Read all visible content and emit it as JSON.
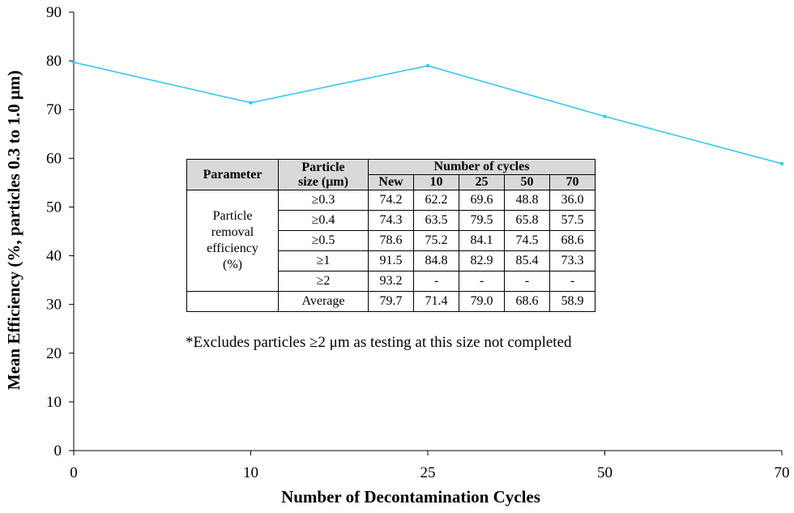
{
  "chart_data": {
    "type": "line",
    "xlabel": "Number of Decontamination Cycles",
    "ylabel": "Mean Efficiency (%, particles 0.3 to 1.0 μm)",
    "categories": [
      "0",
      "10",
      "25",
      "50",
      "70"
    ],
    "values": [
      79.7,
      71.4,
      79.0,
      68.6,
      58.9
    ],
    "ylim": [
      0,
      90
    ],
    "yticks": [
      0,
      10,
      20,
      30,
      40,
      50,
      60,
      70,
      80,
      90
    ],
    "line_color": "#33c9ee",
    "grid": false
  },
  "table": {
    "header_parameter": "Parameter",
    "header_size_line1": "Particle",
    "header_size_line2": "size (μm)",
    "header_cycles": "Number of cycles",
    "cycle_columns": [
      "New",
      "10",
      "25",
      "50",
      "70"
    ],
    "parameter_label": [
      "Particle",
      "removal",
      "efficiency",
      "(%)"
    ],
    "rows": [
      {
        "size": "≥0.3",
        "values": [
          "74.2",
          "62.2",
          "69.6",
          "48.8",
          "36.0"
        ]
      },
      {
        "size": "≥0.4",
        "values": [
          "74.3",
          "63.5",
          "79.5",
          "65.8",
          "57.5"
        ]
      },
      {
        "size": "≥0.5",
        "values": [
          "78.6",
          "75.2",
          "84.1",
          "74.5",
          "68.6"
        ]
      },
      {
        "size": "≥1",
        "values": [
          "91.5",
          "84.8",
          "82.9",
          "85.4",
          "73.3"
        ]
      },
      {
        "size": "≥2",
        "values": [
          "93.2",
          "-",
          "-",
          "-",
          "-"
        ]
      },
      {
        "size": "Average",
        "values": [
          "79.7",
          "71.4",
          "79.0",
          "68.6",
          "58.9"
        ]
      }
    ],
    "footnote": "*Excludes particles ≥2 μm as testing at this size not completed"
  }
}
